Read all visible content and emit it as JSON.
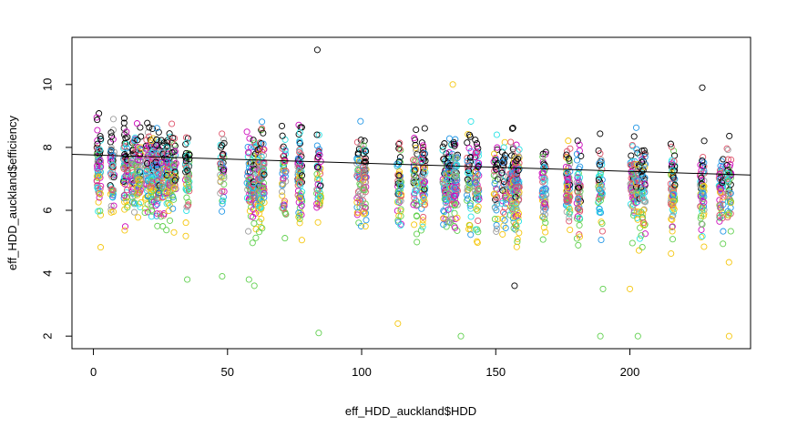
{
  "chart_data": {
    "type": "scatter",
    "title": "",
    "xlabel": "eff_HDD_auckland$HDD",
    "ylabel": "eff_HDD_auckland$efficiency",
    "xlim": [
      -8,
      245
    ],
    "ylim": [
      1.6,
      11.5
    ],
    "x_ticks": [
      0,
      50,
      100,
      150,
      200
    ],
    "y_ticks": [
      2,
      4,
      6,
      8,
      10
    ],
    "grid": false,
    "legend": "none",
    "colors": [
      "#000000",
      "#DF536B",
      "#61D04F",
      "#2297E6",
      "#28E2E5",
      "#CD0BBC",
      "#F5C710",
      "#9E9E9E"
    ],
    "trend_line": {
      "x": [
        -8,
        245
      ],
      "y": [
        7.78,
        7.12
      ]
    },
    "columns_x": [
      2,
      7,
      12,
      15,
      17,
      20,
      22,
      24,
      26,
      28,
      30,
      35,
      48,
      58,
      60,
      62,
      63,
      71,
      77,
      84,
      99,
      101,
      114,
      120,
      123,
      131,
      133,
      135,
      140,
      143,
      150,
      153,
      156,
      157,
      158,
      168,
      177,
      181,
      189,
      201,
      203,
      205,
      216,
      227,
      234,
      237
    ],
    "points": [
      [
        83.5,
        11.1
      ],
      [
        227,
        9.9
      ],
      [
        134,
        10.0
      ],
      [
        84,
        2.1
      ],
      [
        113.5,
        2.4
      ],
      [
        137,
        2.0
      ],
      [
        189,
        2.0
      ],
      [
        203,
        2.0
      ],
      [
        237,
        2.0
      ],
      [
        200,
        3.5
      ],
      [
        190,
        3.5
      ],
      [
        157,
        3.6
      ],
      [
        60,
        3.6
      ],
      [
        48,
        3.9
      ],
      [
        58,
        3.8
      ],
      [
        35,
        3.8
      ]
    ],
    "point_colors": [
      0,
      0,
      6,
      2,
      6,
      2,
      2,
      2,
      6,
      6,
      2,
      0,
      2,
      2,
      2,
      2
    ]
  }
}
